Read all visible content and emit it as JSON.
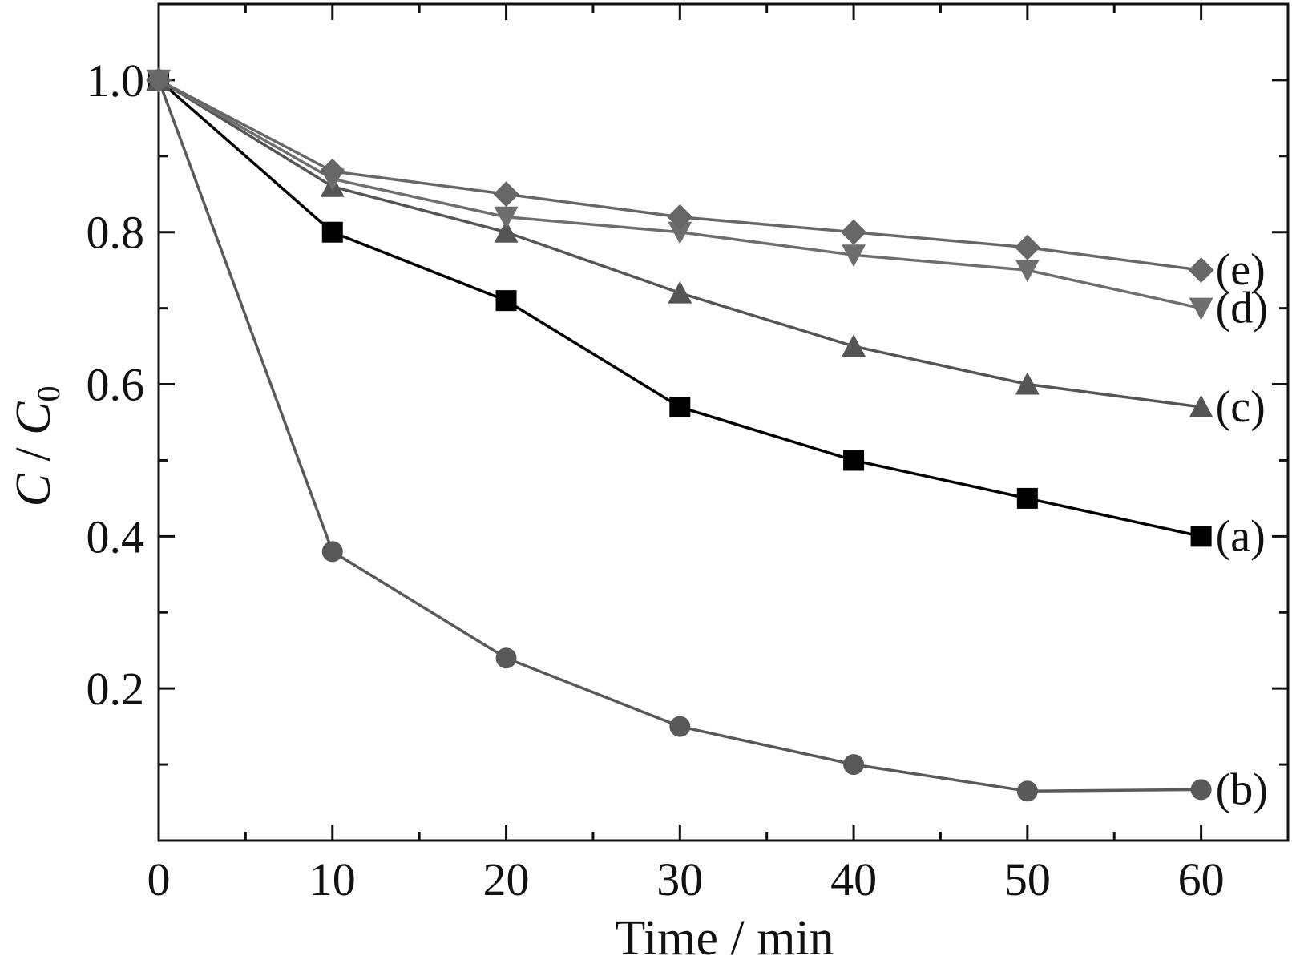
{
  "chart_data": {
    "type": "line",
    "title": "",
    "xlabel": "Time / min",
    "ylabel_main": "C",
    "ylabel_sep": " / ",
    "ylabel_sub_main": "C",
    "ylabel_sub_index": "0",
    "xlim": [
      0,
      65
    ],
    "ylim": [
      0.0,
      1.1
    ],
    "xticks": [
      0,
      10,
      20,
      30,
      40,
      50,
      60
    ],
    "xtick_labels": [
      "0",
      "10",
      "20",
      "30",
      "40",
      "50",
      "60"
    ],
    "xminor": [
      5,
      15,
      25,
      35,
      45,
      55
    ],
    "yticks": [
      0.2,
      0.4,
      0.6,
      0.8,
      1.0
    ],
    "ytick_labels": [
      "0.2",
      "0.4",
      "0.6",
      "0.8",
      "1.0"
    ],
    "yminor": [
      0.1,
      0.3,
      0.5,
      0.7,
      0.9
    ],
    "grid": false,
    "x": [
      0,
      10,
      20,
      30,
      40,
      50,
      60
    ],
    "series": [
      {
        "name": "(b)",
        "marker": "circle",
        "color": "#595959",
        "values": [
          1.0,
          0.38,
          0.24,
          0.15,
          0.1,
          0.065,
          0.067
        ]
      },
      {
        "name": "(a)",
        "marker": "square",
        "color": "#000000",
        "values": [
          1.0,
          0.8,
          0.71,
          0.57,
          0.5,
          0.45,
          0.4
        ]
      },
      {
        "name": "(c)",
        "marker": "triangle-up",
        "color": "#555555",
        "values": [
          1.0,
          0.86,
          0.8,
          0.72,
          0.65,
          0.6,
          0.57
        ]
      },
      {
        "name": "(d)",
        "marker": "triangle-down",
        "color": "#6e6e6e",
        "values": [
          1.0,
          0.87,
          0.82,
          0.8,
          0.77,
          0.75,
          0.7
        ]
      },
      {
        "name": "(e)",
        "marker": "diamond",
        "color": "#676767",
        "values": [
          1.0,
          0.88,
          0.85,
          0.82,
          0.8,
          0.78,
          0.75
        ]
      }
    ]
  }
}
